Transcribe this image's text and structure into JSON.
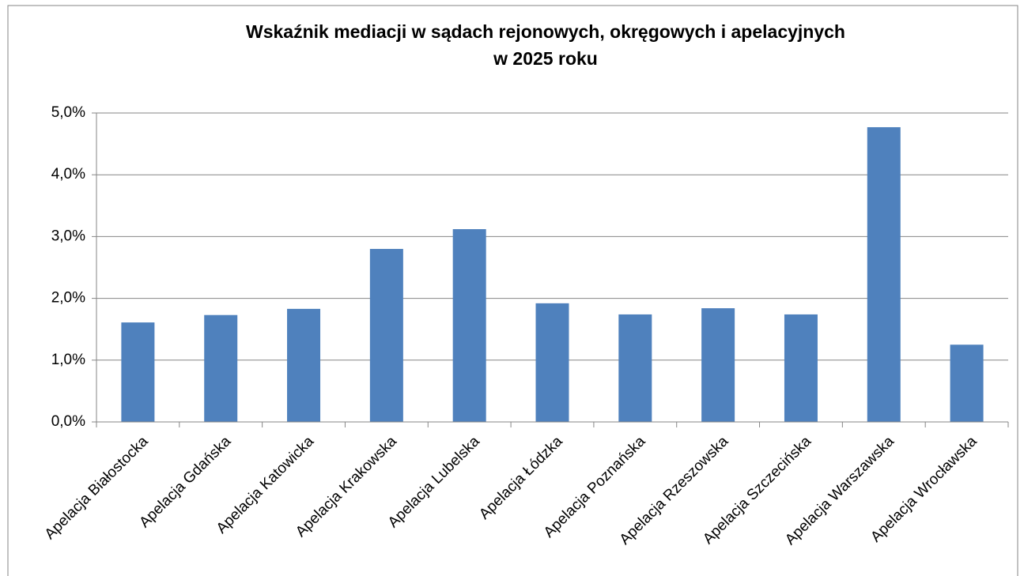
{
  "chart_data": {
    "type": "bar",
    "title": [
      "Wskaźnik mediacji w sądach rejonowych, okręgowych i apelacyjnych",
      "w 2025 roku"
    ],
    "categories": [
      "Apelacja Białostocka",
      "Apelacja Gdańska",
      "Apelacja Katowicka",
      "Apelacja Krakowska",
      "Apelacja Lubelska",
      "Apelacja Łódzka",
      "Apelacja Poznańska",
      "Apelacja Rzeszowska",
      "Apelacja Szczecińska",
      "Apelacja Warszawska",
      "Apelacja Wrocławska"
    ],
    "values": [
      1.61,
      1.73,
      1.83,
      2.8,
      3.12,
      1.92,
      1.74,
      1.84,
      1.74,
      4.77,
      1.25
    ],
    "color": "#4f81bd",
    "ylim": [
      0,
      5
    ],
    "yticks": [
      {
        "value": 0,
        "label": "0,0%"
      },
      {
        "value": 1,
        "label": "1,0%"
      },
      {
        "value": 2,
        "label": "2,0%"
      },
      {
        "value": 3,
        "label": "3,0%"
      },
      {
        "value": 4,
        "label": "4,0%"
      },
      {
        "value": 5,
        "label": "5,0%"
      }
    ],
    "grid": true
  }
}
